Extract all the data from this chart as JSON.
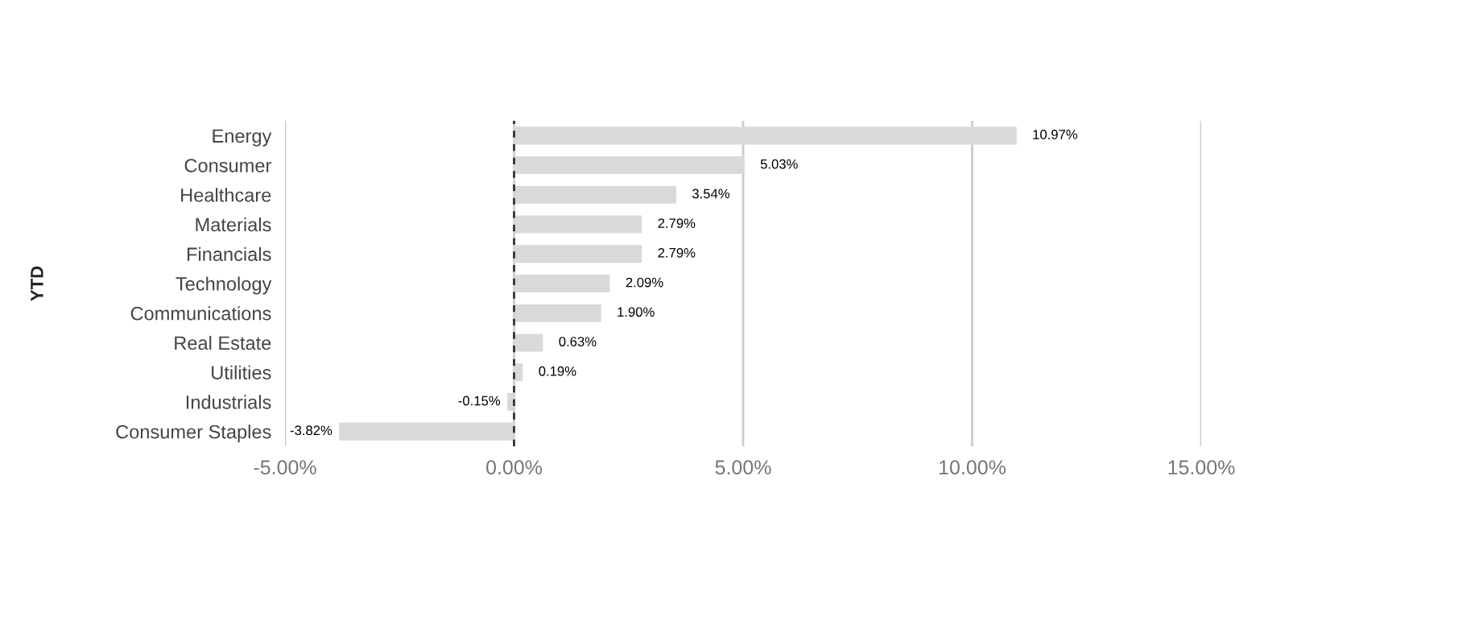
{
  "chart_data": {
    "type": "bar",
    "orientation": "horizontal",
    "ylabel": "YTD",
    "categories": [
      "Energy",
      "Consumer",
      "Healthcare",
      "Materials",
      "Financials",
      "Technology",
      "Communications",
      "Real Estate",
      "Utilities",
      "Industrials",
      "Consumer Staples"
    ],
    "values": [
      10.97,
      5.03,
      3.54,
      2.79,
      2.79,
      2.09,
      1.9,
      0.63,
      0.19,
      -0.15,
      -3.82
    ],
    "value_labels": [
      "10.97%",
      "5.03%",
      "3.54%",
      "2.79%",
      "2.79%",
      "2.09%",
      "1.90%",
      "0.63%",
      "0.19%",
      "-0.15%",
      "-3.82%"
    ],
    "color": "#d9d9d9",
    "xlim": [
      -5,
      15
    ],
    "xticks": [
      {
        "value": -5,
        "label": "-5.00%"
      },
      {
        "value": 0,
        "label": "0.00%"
      },
      {
        "value": 5,
        "label": "5.00%"
      },
      {
        "value": 10,
        "label": "10.00%"
      },
      {
        "value": 15,
        "label": "15.00%"
      }
    ],
    "ref_lines": [
      {
        "axis": "x",
        "value": 0,
        "color": "#333333",
        "line_style": "dashed"
      }
    ],
    "grid": "x",
    "legend": false
  }
}
